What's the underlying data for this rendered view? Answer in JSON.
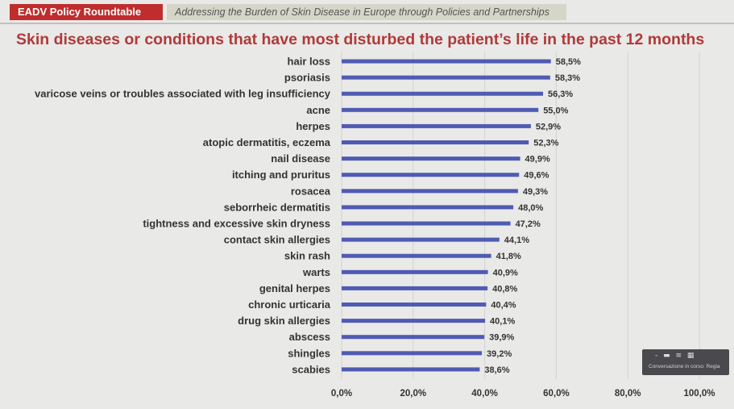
{
  "header": {
    "badge": "EADV Policy Roundtable",
    "subtitle": "Addressing the Burden of Skin Disease in Europe through Policies and Partnerships"
  },
  "overlay": {
    "icons": "- ▬ ≡ ▦",
    "status_text": "Conversazione in corso: Regia"
  },
  "colors": {
    "bar": "#4f5bb3",
    "title": "#b03a3a",
    "badge": "#bf2d2d"
  },
  "chart_data": {
    "type": "bar",
    "orientation": "horizontal",
    "title": "Skin diseases or conditions that have most disturbed the patient’s life in the past 12 months",
    "categories": [
      "hair loss",
      "psoriasis",
      "varicose veins or troubles associated with leg insufficiency",
      "acne",
      "herpes",
      "atopic dermatitis, eczema",
      "nail disease",
      "itching and pruritus",
      "rosacea",
      "seborrheic dermatitis",
      "tightness and excessive skin dryness",
      "contact skin allergies",
      "skin rash",
      "warts",
      "genital herpes",
      "chronic urticaria",
      "drug skin allergies",
      "abscess",
      "shingles",
      "scabies"
    ],
    "values": [
      58.5,
      58.3,
      56.3,
      55.0,
      52.9,
      52.3,
      49.9,
      49.6,
      49.3,
      48.0,
      47.2,
      44.1,
      41.8,
      40.9,
      40.8,
      40.4,
      40.1,
      39.9,
      39.2,
      38.6
    ],
    "value_labels": [
      "58,5%",
      "58,3%",
      "56,3%",
      "55,0%",
      "52,9%",
      "52,3%",
      "49,9%",
      "49,6%",
      "49,3%",
      "48,0%",
      "47,2%",
      "44,1%",
      "41,8%",
      "40,9%",
      "40,8%",
      "40,4%",
      "40,1%",
      "39,9%",
      "39,2%",
      "38,6%"
    ],
    "xlim": [
      0,
      100
    ],
    "x_ticks": [
      "0,0%",
      "20,0%",
      "40,0%",
      "60,0%",
      "80,0%",
      "100,0%"
    ],
    "grid": true,
    "legend": "none"
  }
}
